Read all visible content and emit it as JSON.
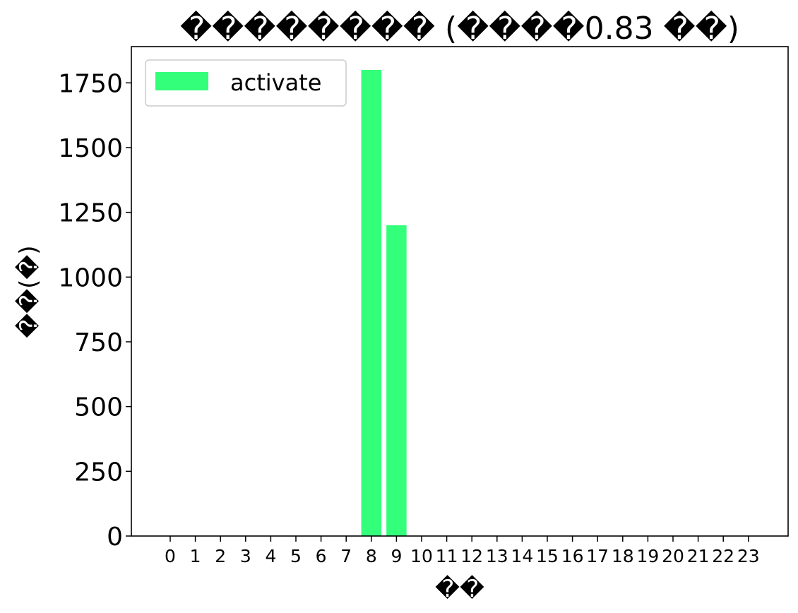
{
  "chart_data": {
    "type": "bar",
    "title": "�������� (����0.83 ��)",
    "xlabel": "��",
    "ylabel": "��(�)",
    "categories": [
      "0",
      "1",
      "2",
      "3",
      "4",
      "5",
      "6",
      "7",
      "8",
      "9",
      "10",
      "11",
      "12",
      "13",
      "14",
      "15",
      "16",
      "17",
      "18",
      "19",
      "20",
      "21",
      "22",
      "23"
    ],
    "series": [
      {
        "name": "activate",
        "color": "#33ff7a",
        "values": [
          0,
          0,
          0,
          0,
          0,
          0,
          0,
          0,
          1800,
          1200,
          0,
          0,
          0,
          0,
          0,
          0,
          0,
          0,
          0,
          0,
          0,
          0,
          0,
          0
        ]
      }
    ],
    "yticks": [
      0,
      250,
      500,
      750,
      1000,
      1250,
      1500,
      1750
    ],
    "ylim": [
      0,
      1890
    ],
    "grid": false,
    "legend_position": "top-left"
  }
}
